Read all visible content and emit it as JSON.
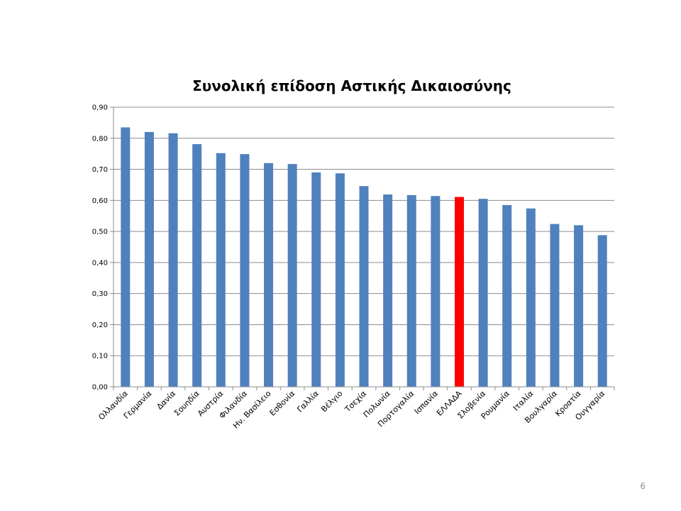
{
  "slide": {
    "page_number": "6"
  },
  "chart_data": {
    "type": "bar",
    "title": "Συνολική επίδοση Αστικής Δικαιοσύνης",
    "xlabel": "",
    "ylabel": "",
    "ylim": [
      0,
      0.9
    ],
    "yticks": [
      "0,00",
      "0,10",
      "0,20",
      "0,30",
      "0,40",
      "0,50",
      "0,60",
      "0,70",
      "0,80",
      "0,90"
    ],
    "grid": true,
    "categories": [
      "Ολλανδία",
      "Γερμανία",
      "Δανία",
      "Σουηδία",
      "Αυστρία",
      "Φιλανδία",
      "Ην. Βασίλειο",
      "Εσθονία",
      "Γαλλία",
      "Βέλγιο",
      "Τσεχία",
      "Πολωνία",
      "Πορτογαλία",
      "Ισπανία",
      "ΕΛΛΑΔΑ",
      "Σλοβενία",
      "Ρουμανία",
      "Ιταλία",
      "Βουλγαρία",
      "Κροατία",
      "Ουγγαρία"
    ],
    "values": [
      0.835,
      0.82,
      0.816,
      0.781,
      0.752,
      0.749,
      0.72,
      0.717,
      0.69,
      0.687,
      0.646,
      0.619,
      0.617,
      0.614,
      0.611,
      0.605,
      0.585,
      0.574,
      0.524,
      0.52,
      0.488
    ],
    "colors": {
      "bar": "#4f81bd",
      "highlight": "#ff0000",
      "grid": "#8c8c8c",
      "axis": "#8c8c8c"
    },
    "highlight_category": "ΕΛΛΑΔΑ"
  }
}
